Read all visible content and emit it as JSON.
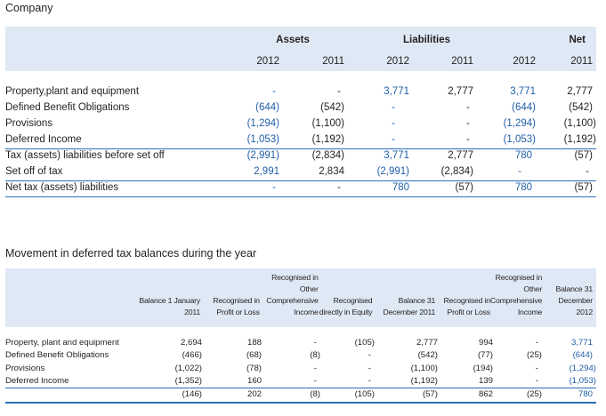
{
  "company_section": {
    "title": "Company",
    "groups": [
      "Assets",
      "Liabilities",
      "Net"
    ],
    "years": [
      "2012",
      "2011",
      "2012",
      "2011",
      "2012",
      "2011"
    ],
    "rows": [
      {
        "label": "Property,plant and equipment",
        "values": [
          "-",
          "-",
          "3,771",
          "2,777",
          "3,771",
          "2,777"
        ]
      },
      {
        "label": "Defined Benefit Obligations",
        "values": [
          "(644)",
          "(542)",
          "-",
          "-",
          "(644)",
          "(542)"
        ]
      },
      {
        "label": "Provisions",
        "values": [
          "(1,294)",
          "(1,100)",
          "-",
          "-",
          "(1,294)",
          "(1,100)"
        ]
      },
      {
        "label": "Deferred Income",
        "values": [
          "(1,053)",
          "(1,192)",
          "-",
          "-",
          "(1,053)",
          "(1,192)"
        ]
      },
      {
        "label": "Tax (assets) liabilities before set off",
        "values": [
          "(2,991)",
          "(2,834)",
          "3,771",
          "2,777",
          "780",
          "(57)"
        ]
      },
      {
        "label": "Set off of tax",
        "values": [
          "2,991",
          "2,834",
          "(2,991)",
          "(2,834)",
          "-",
          "-"
        ]
      },
      {
        "label": "Net tax (assets) liabilities",
        "values": [
          "-",
          "-",
          "780",
          "(57)",
          "780",
          "(57)"
        ]
      }
    ]
  },
  "movement_section": {
    "title": "Movement in deferred tax balances during the year",
    "headers": [
      "Balance 1 January 2011",
      "Recognised in Profit or Loss",
      "Recognised in Other Comprehensive Income",
      "Recognised directly in Equity",
      "Balance 31 December 2011",
      "Recognised in Profit or Loss",
      "Recognised in Other Comprehensive Income",
      "Balance 31 December 2012"
    ],
    "rows": [
      {
        "label": "Property, plant and equipment",
        "values": [
          "2,694",
          "188",
          "-",
          "(105)",
          "2,777",
          "994",
          "-",
          "3,771"
        ]
      },
      {
        "label": "Defined Benefit Obligations",
        "values": [
          "(466)",
          "(68)",
          "(8)",
          "-",
          "(542)",
          "(77)",
          "(25)",
          "(644)"
        ]
      },
      {
        "label": "Provisions",
        "values": [
          "(1,022)",
          "(78)",
          "-",
          "-",
          "(1,100)",
          "(194)",
          "-",
          "(1,294)"
        ]
      },
      {
        "label": "Deferred Income",
        "values": [
          "(1,352)",
          "160",
          "-",
          "-",
          "(1,192)",
          "139",
          "-",
          "(1,053)"
        ]
      }
    ],
    "total": {
      "label": "",
      "values": [
        "(146)",
        "202",
        "(8)",
        "(105)",
        "(57)",
        "862",
        "(25)",
        "780"
      ]
    }
  },
  "colors": {
    "accent_blue": "#1f5ea8",
    "panel_bg": "#dfe9f5",
    "rule": "#2a6fb8"
  }
}
